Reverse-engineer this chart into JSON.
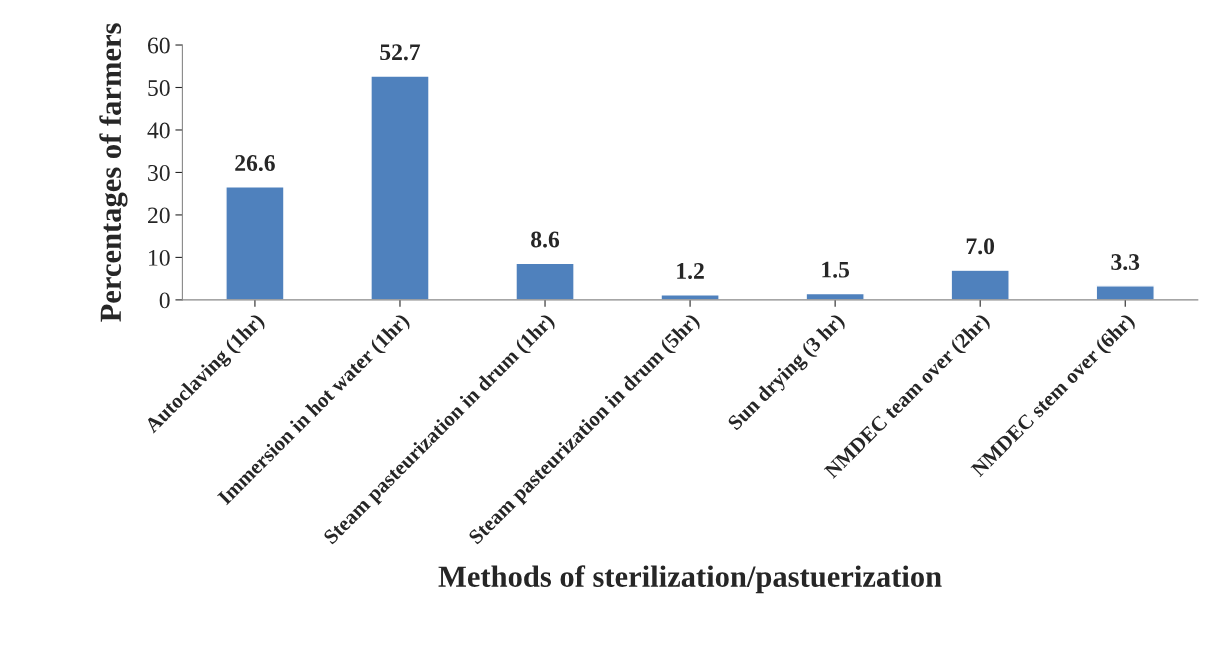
{
  "chart_data": {
    "type": "bar",
    "xlabel": "Methods of sterilization/pastuerization",
    "ylabel": "Percentages of farmers",
    "categories": [
      "Autoclaving (1hr)",
      "Immersion in hot water (1hr)",
      "Steam pasteurization in drum (1hr)",
      "Steam pasteurization in drum (5hr)",
      "Sun drying (3 hr)",
      "NMDEC team over (2hr)",
      "NMDEC stem over (6hr)"
    ],
    "values": [
      26.6,
      52.7,
      8.6,
      1.2,
      1.5,
      7.0,
      3.3
    ],
    "value_labels": [
      "26.6",
      "52.7",
      "8.6",
      "1.2",
      "1.5",
      "7.0",
      "3.3"
    ],
    "color": "#4f81bd",
    "ylim": [
      0,
      60
    ],
    "yticks": [
      0,
      10,
      20,
      30,
      40,
      50,
      60
    ],
    "grid": false,
    "legend": false
  }
}
